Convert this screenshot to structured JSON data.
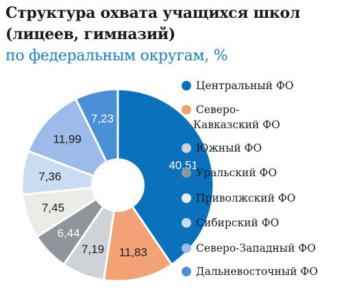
{
  "title_lines": [
    "Структура охвата учащихся школ",
    "(лицеев, гимназий)"
  ],
  "subtitle": "по федеральным округам, %",
  "chart_data": {
    "type": "pie",
    "title": "Структура охвата учащихся школ (лицеев, гимназий) по федеральным округам, %",
    "donut": true,
    "legend_position": "right",
    "slices": [
      {
        "label": "Центральный ФО",
        "legend_lines": [
          "Центральный ФО"
        ],
        "value": 40.51,
        "value_label": "40,51",
        "color": "#0a72bd",
        "label_color": "#ffffff"
      },
      {
        "label": "Северо-Кавказский ФО",
        "legend_lines": [
          "Северо-",
          "Кавказский ФО"
        ],
        "value": 11.83,
        "value_label": "11,83",
        "color": "#f2a274",
        "label_color": "#1a1a1a"
      },
      {
        "label": "Южный ФО",
        "legend_lines": [
          "Южный ФО"
        ],
        "value": 7.19,
        "value_label": "7,19",
        "color": "#d0d3d5",
        "label_color": "#1a1a1a"
      },
      {
        "label": "Уральский ФО",
        "legend_lines": [
          "Уральский ФО"
        ],
        "value": 6.44,
        "value_label": "6,44",
        "color": "#8e959b",
        "label_color": "#ffffff"
      },
      {
        "label": "Приволжский ФО",
        "legend_lines": [
          "Приволжский ФО"
        ],
        "value": 7.45,
        "value_label": "7,45",
        "color": "#ebebe8",
        "label_color": "#1a1a1a"
      },
      {
        "label": "Сибирский ФО",
        "legend_lines": [
          "Сибирский ФО"
        ],
        "value": 7.36,
        "value_label": "7,36",
        "color": "#c9dcf2",
        "label_color": "#1a1a1a"
      },
      {
        "label": "Северо-Западный ФО",
        "legend_lines": [
          "Северо-Западный ФО"
        ],
        "value": 11.99,
        "value_label": "11,99",
        "color": "#9dbbe8",
        "label_color": "#1a1a1a"
      },
      {
        "label": "Дальневосточный ФО",
        "legend_lines": [
          "Дальневосточный ФО"
        ],
        "value": 7.23,
        "value_label": "7,23",
        "color": "#4a90d6",
        "label_color": "#ffffff"
      }
    ]
  }
}
